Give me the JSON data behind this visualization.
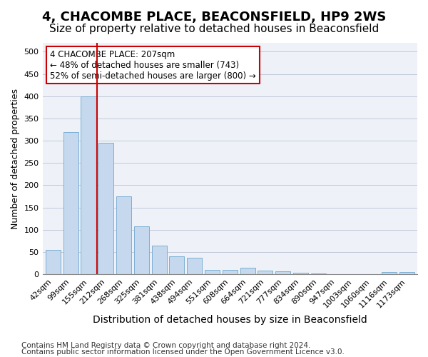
{
  "title": "4, CHACOMBE PLACE, BEACONSFIELD, HP9 2WS",
  "subtitle": "Size of property relative to detached houses in Beaconsfield",
  "xlabel": "Distribution of detached houses by size in Beaconsfield",
  "ylabel": "Number of detached properties",
  "footnote1": "Contains HM Land Registry data © Crown copyright and database right 2024.",
  "footnote2": "Contains public sector information licensed under the Open Government Licence v3.0.",
  "categories": [
    "42sqm",
    "99sqm",
    "155sqm",
    "212sqm",
    "268sqm",
    "325sqm",
    "381sqm",
    "438sqm",
    "494sqm",
    "551sqm",
    "608sqm",
    "664sqm",
    "721sqm",
    "777sqm",
    "834sqm",
    "890sqm",
    "947sqm",
    "1003sqm",
    "1060sqm",
    "1116sqm",
    "1173sqm"
  ],
  "values": [
    55,
    320,
    400,
    295,
    175,
    107,
    65,
    40,
    37,
    10,
    10,
    15,
    8,
    6,
    3,
    1,
    0,
    0,
    0,
    5,
    5
  ],
  "bar_color": "#c5d8ed",
  "bar_edgecolor": "#7bafd4",
  "vline_x": 2.5,
  "vline_color": "#cc0000",
  "annotation_text": "4 CHACOMBE PLACE: 207sqm\n← 48% of detached houses are smaller (743)\n52% of semi-detached houses are larger (800) →",
  "annotation_box_color": "#ffffff",
  "annotation_box_edgecolor": "#cc0000",
  "ylim": [
    0,
    520
  ],
  "yticks": [
    0,
    50,
    100,
    150,
    200,
    250,
    300,
    350,
    400,
    450,
    500
  ],
  "grid_color": "#c0c8d8",
  "bg_color": "#eef2f8",
  "title_fontsize": 13,
  "subtitle_fontsize": 11,
  "xlabel_fontsize": 10,
  "ylabel_fontsize": 9,
  "tick_fontsize": 8,
  "annotation_fontsize": 8.5,
  "footnote_fontsize": 7.5
}
